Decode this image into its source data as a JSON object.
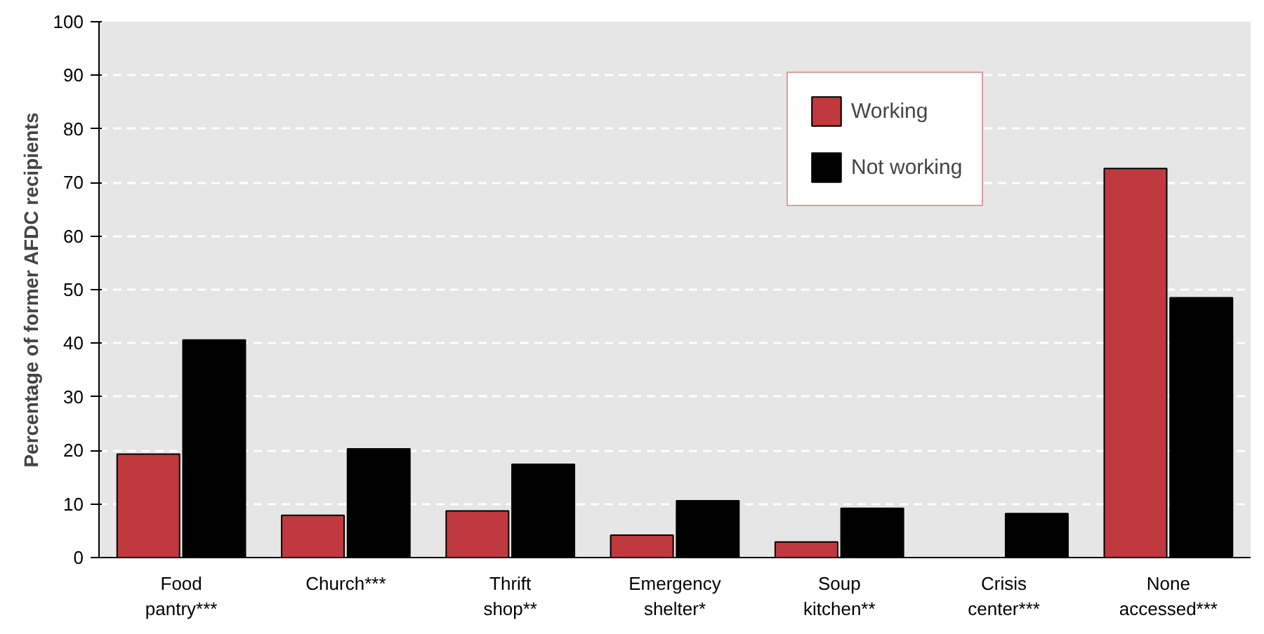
{
  "chart_data": {
    "type": "bar",
    "ylabel": "Percentage of former AFDC recipients",
    "categories": [
      "Food\npantry***",
      "Church***",
      "Thrift\nshop**",
      "Emergency\nshelter*",
      "Soup\nkitchen**",
      "Crisis\ncenter***",
      "None\naccessed***"
    ],
    "series": [
      {
        "name": "Working",
        "color": "#c0393f",
        "values": [
          19.3,
          7.9,
          8.7,
          4.2,
          2.9,
          null,
          72.6
        ]
      },
      {
        "name": "Not working",
        "color": "#000000",
        "values": [
          40.6,
          20.3,
          17.4,
          10.6,
          9.2,
          8.2,
          48.5
        ]
      }
    ],
    "ylim": [
      0,
      100
    ],
    "yticks": [
      0,
      10,
      20,
      30,
      40,
      50,
      60,
      70,
      80,
      90,
      100
    ],
    "grid": "y",
    "legend": "top"
  }
}
